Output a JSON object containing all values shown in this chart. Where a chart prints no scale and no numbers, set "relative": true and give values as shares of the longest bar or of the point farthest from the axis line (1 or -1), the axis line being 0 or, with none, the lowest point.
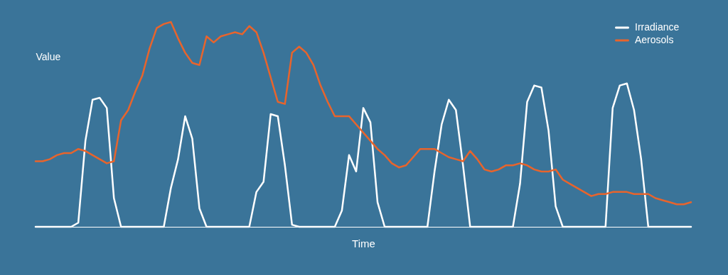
{
  "chart_data": {
    "type": "line",
    "relative": true,
    "xlabel": "Time",
    "ylabel": "Value",
    "legend": "top right",
    "grid": false,
    "marker": "none",
    "line_style": "solid",
    "categories": [
      null,
      null,
      null,
      null,
      null,
      null,
      null,
      null,
      null,
      null,
      null,
      null,
      null,
      null,
      null,
      null,
      null,
      null,
      null,
      null,
      null,
      null,
      null,
      null,
      null,
      null,
      null,
      null,
      null,
      null,
      null,
      null,
      null,
      null,
      null,
      null,
      null,
      null,
      null,
      null,
      null,
      null,
      null,
      null,
      null,
      null,
      null,
      null,
      null,
      null,
      null,
      null,
      null,
      null,
      null,
      null,
      null,
      null,
      null,
      null,
      null,
      null,
      null,
      null,
      null,
      null,
      null,
      null,
      null,
      null,
      null,
      null,
      null,
      null,
      null,
      null,
      null,
      null,
      null,
      null,
      null,
      null,
      null,
      null,
      null,
      null,
      null,
      null,
      null,
      null,
      null,
      null,
      null
    ],
    "series": [
      {
        "name": "Irradiance",
        "color": "#ffffff",
        "values": [
          0,
          0,
          0,
          0,
          0,
          0,
          0.02,
          0.42,
          0.62,
          0.63,
          0.58,
          0.14,
          0,
          0,
          0,
          0,
          0,
          0,
          0,
          0.19,
          0.33,
          0.54,
          0.43,
          0.09,
          0,
          0,
          0,
          0,
          0,
          0,
          0,
          0.17,
          0.22,
          0.55,
          0.54,
          0.3,
          0.01,
          0,
          0,
          0,
          0,
          0,
          0,
          0.08,
          0.35,
          0.27,
          0.58,
          0.51,
          0.12,
          0,
          0,
          0,
          0,
          0,
          0,
          0,
          0.27,
          0.5,
          0.62,
          0.57,
          0.3,
          0,
          0,
          0,
          0,
          0,
          0,
          0,
          0.21,
          0.61,
          0.69,
          0.68,
          0.47,
          0.1,
          0,
          0,
          0,
          0,
          0,
          0,
          0,
          0.58,
          0.69,
          0.7,
          0.57,
          0.33,
          0,
          0,
          0,
          0,
          0,
          0,
          0
        ]
      },
      {
        "name": "Aerosols",
        "color": "#e8642c",
        "values": [
          0.32,
          0.32,
          0.33,
          0.35,
          0.36,
          0.36,
          0.38,
          0.37,
          0.35,
          0.33,
          0.31,
          0.32,
          0.52,
          0.57,
          0.66,
          0.74,
          0.87,
          0.97,
          0.99,
          1.0,
          0.92,
          0.85,
          0.8,
          0.79,
          0.93,
          0.9,
          0.93,
          0.94,
          0.95,
          0.94,
          0.98,
          0.95,
          0.85,
          0.73,
          0.61,
          0.6,
          0.85,
          0.88,
          0.85,
          0.79,
          0.69,
          0.61,
          0.54,
          0.54,
          0.54,
          0.5,
          0.46,
          0.42,
          0.38,
          0.35,
          0.31,
          0.29,
          0.3,
          0.34,
          0.38,
          0.38,
          0.38,
          0.36,
          0.34,
          0.33,
          0.32,
          0.37,
          0.33,
          0.28,
          0.27,
          0.28,
          0.3,
          0.3,
          0.31,
          0.3,
          0.28,
          0.27,
          0.27,
          0.28,
          0.23,
          0.21,
          0.19,
          0.17,
          0.15,
          0.16,
          0.16,
          0.17,
          0.17,
          0.17,
          0.16,
          0.16,
          0.16,
          0.14,
          0.13,
          0.12,
          0.11,
          0.11,
          0.12
        ]
      }
    ]
  }
}
